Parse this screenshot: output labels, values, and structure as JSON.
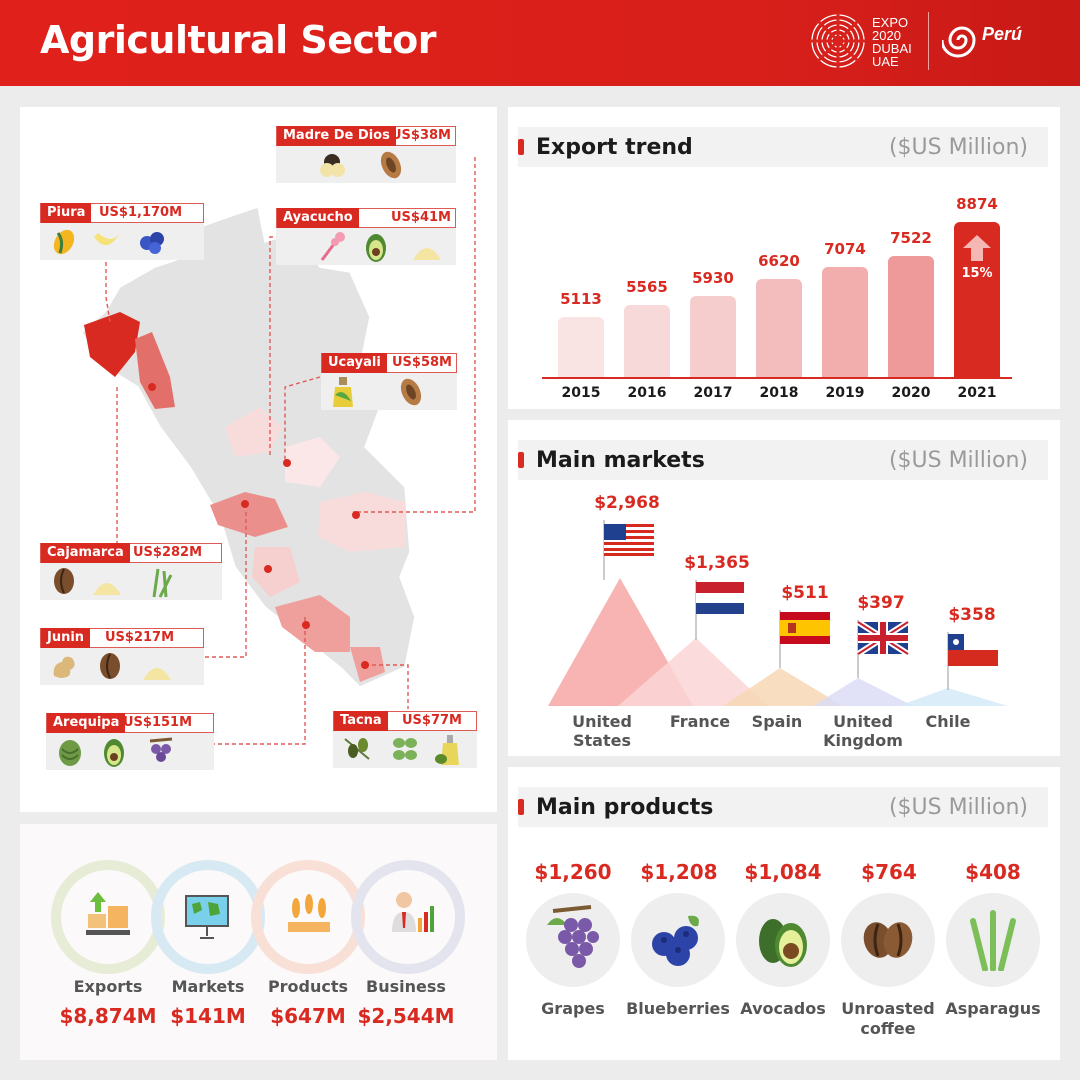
{
  "header": {
    "title": "Agricultural Sector",
    "expo_line1": "EXPO",
    "expo_line2": "2020",
    "expo_line3": "DUBAI",
    "expo_line4": "UAE",
    "peru_logo": "Perú"
  },
  "colors": {
    "accent": "#d92a22",
    "bar_scale": [
      "#fae3e3",
      "#f8d9d9",
      "#f6cdcd",
      "#f4bdbd",
      "#f2adad",
      "#ee9a9a",
      "#d92a22"
    ]
  },
  "regions": [
    {
      "name": "Madre De Dios",
      "value": "US$38M",
      "icons": [
        "macadamia-nuts-icon",
        "cocoa-bean-icon"
      ]
    },
    {
      "name": "Piura",
      "value": "US$1,170M",
      "icons": [
        "mango-icon",
        "banana-icon",
        "blueberries-icon"
      ]
    },
    {
      "name": "Ayacucho",
      "value": "US$41M",
      "icons": [
        "quinoa-plant-icon",
        "avocado-icon",
        "flour-icon"
      ]
    },
    {
      "name": "Ucayali",
      "value": "US$58M",
      "icons": [
        "oil-bottle-icon",
        "cocoa-bean-icon"
      ]
    },
    {
      "name": "Cajamarca",
      "value": "US$282M",
      "icons": [
        "coffee-bean-icon",
        "flour-icon",
        "asparagus-icon"
      ]
    },
    {
      "name": "Junin",
      "value": "US$217M",
      "icons": [
        "ginger-icon",
        "coffee-bean-icon",
        "flour-icon"
      ]
    },
    {
      "name": "Arequipa",
      "value": "US$151M",
      "icons": [
        "artichoke-icon",
        "avocado-icon",
        "grapes-icon"
      ]
    },
    {
      "name": "Tacna",
      "value": "US$77M",
      "icons": [
        "olives-icon",
        "oregano-icon",
        "olive-oil-icon"
      ]
    }
  ],
  "stats": [
    {
      "label": "Exports",
      "value": "$8,874M",
      "icon": "export-boxes-icon",
      "ring": "#e6ecd6"
    },
    {
      "label": "Markets",
      "value": "$141M",
      "icon": "world-map-board-icon",
      "ring": "#d7e9f3"
    },
    {
      "label": "Products",
      "value": "$647M",
      "icon": "wheat-icon",
      "ring": "#f8e0d6"
    },
    {
      "label": "Business",
      "value": "$2,544M",
      "icon": "businessman-chart-icon",
      "ring": "#e4e4ee"
    }
  ],
  "export_trend": {
    "title": "Export trend",
    "unit": "($US Million)",
    "growth_label": "15%",
    "chart_data": {
      "type": "bar",
      "categories": [
        "2015",
        "2016",
        "2017",
        "2018",
        "2019",
        "2020",
        "2021"
      ],
      "values": [
        5113,
        5565,
        5930,
        6620,
        7074,
        7522,
        8874
      ],
      "value_labels": [
        "5113",
        "5565",
        "5930",
        "6620",
        "7074",
        "7522",
        "8874"
      ],
      "title": "Export trend",
      "xlabel": "",
      "ylabel": ""
    }
  },
  "main_markets": {
    "title": "Main markets",
    "unit": "($US Million)",
    "items": [
      {
        "country": "United States",
        "value": "$2,968",
        "amount": 2968,
        "flag": "usa-flag-icon",
        "color": "#f6a7a5"
      },
      {
        "country": "France",
        "value": "$1,365",
        "amount": 1365,
        "flag": "netherlands-flag-icon",
        "color": "#fbd5d6"
      },
      {
        "country": "Spain",
        "value": "$511",
        "amount": 511,
        "flag": "spain-flag-icon",
        "color": "#f7d7b5"
      },
      {
        "country": "United Kingdom",
        "value": "$397",
        "amount": 397,
        "flag": "uk-flag-icon",
        "color": "#dcdcf6"
      },
      {
        "country": "Chile",
        "value": "$358",
        "amount": 358,
        "flag": "chile-flag-icon",
        "color": "#d5eaf7"
      }
    ]
  },
  "main_products": {
    "title": "Main products",
    "unit": "($US Million)",
    "items": [
      {
        "name": "Grapes",
        "value": "$1,260",
        "icon": "grapes-icon"
      },
      {
        "name": "Blueberries",
        "value": "$1,208",
        "icon": "blueberries-icon"
      },
      {
        "name": "Avocados",
        "value": "$1,084",
        "icon": "avocado-icon"
      },
      {
        "name": "Unroasted coffee",
        "value": "$764",
        "icon": "coffee-bean-icon"
      },
      {
        "name": "Asparagus",
        "value": "$408",
        "icon": "asparagus-icon"
      }
    ]
  }
}
